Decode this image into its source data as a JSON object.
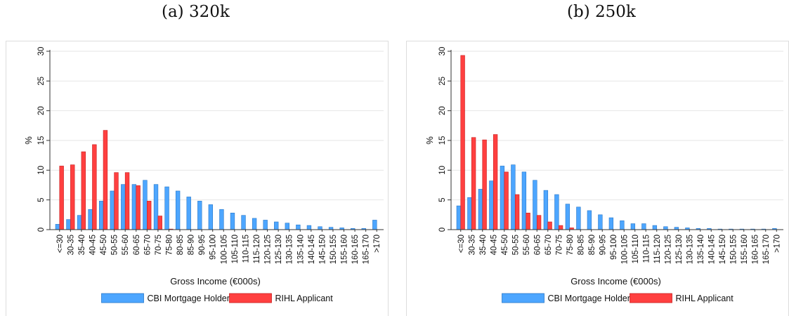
{
  "figure": {
    "panels": [
      {
        "title": "(a) 320k"
      },
      {
        "title": "(b) 250k"
      }
    ]
  },
  "colors": {
    "cbi": "#4da6ff",
    "cbi_edge": "#2a78c8",
    "rihl": "#ff4040",
    "rihl_edge": "#c81e1e",
    "grid": "#e6e6e6",
    "frame": "#dddddd",
    "axis": "#333333"
  },
  "chart_data": [
    {
      "type": "bar",
      "title": "(a) 320k",
      "xlabel": "Gross Income (€000s)",
      "ylabel": "%",
      "ylim": [
        0,
        30
      ],
      "yticks": [
        0,
        5,
        10,
        15,
        20,
        25,
        30
      ],
      "grid": true,
      "legend_position": "bottom",
      "categories": [
        "<=30",
        "30-35",
        "35-40",
        "40-45",
        "45-50",
        "50-55",
        "55-60",
        "60-65",
        "65-70",
        "70-75",
        "75-80",
        "80-85",
        "85-90",
        "90-95",
        "95-100",
        "100-105",
        "105-110",
        "110-115",
        "115-120",
        "120-125",
        "125-130",
        "130-135",
        "135-140",
        "140-145",
        "145-150",
        "150-155",
        "155-160",
        "160-165",
        "165-170",
        ">170"
      ],
      "series": [
        {
          "name": "CBI Mortgage Holder",
          "values": [
            0.9,
            1.7,
            2.4,
            3.4,
            4.8,
            6.5,
            7.6,
            7.6,
            8.3,
            7.6,
            7.2,
            6.5,
            5.5,
            4.8,
            4.2,
            3.4,
            2.8,
            2.4,
            1.9,
            1.6,
            1.3,
            1.1,
            0.8,
            0.7,
            0.5,
            0.4,
            0.3,
            0.2,
            0.2,
            1.6
          ]
        },
        {
          "name": "RIHL Applicant",
          "values": [
            10.7,
            10.9,
            13.1,
            14.3,
            16.7,
            9.6,
            9.6,
            7.4,
            4.8,
            2.3,
            0.1,
            0,
            0,
            0,
            0,
            0,
            0,
            0,
            0,
            0,
            0,
            0,
            0,
            0,
            0,
            0,
            0,
            0,
            0,
            0
          ]
        }
      ]
    },
    {
      "type": "bar",
      "title": "(b) 250k",
      "xlabel": "Gross Income (€000s)",
      "ylabel": "%",
      "ylim": [
        0,
        30
      ],
      "yticks": [
        0,
        5,
        10,
        15,
        20,
        25,
        30
      ],
      "grid": true,
      "legend_position": "bottom",
      "categories": [
        "<=30",
        "30-35",
        "35-40",
        "40-45",
        "45-50",
        "50-55",
        "55-60",
        "60-65",
        "65-70",
        "70-75",
        "75-80",
        "80-85",
        "85-90",
        "90-95",
        "95-100",
        "100-105",
        "105-110",
        "110-115",
        "115-120",
        "120-125",
        "125-130",
        "130-135",
        "135-140",
        "140-145",
        "145-150",
        "150-155",
        "155-160",
        "160-165",
        "165-170",
        ">170"
      ],
      "series": [
        {
          "name": "CBI Mortgage Holder",
          "values": [
            4.0,
            5.4,
            6.8,
            8.2,
            10.7,
            10.9,
            9.7,
            8.3,
            6.6,
            5.9,
            4.3,
            3.8,
            3.2,
            2.5,
            2.0,
            1.5,
            1.0,
            1.0,
            0.7,
            0.5,
            0.4,
            0.3,
            0.2,
            0.2,
            0.1,
            0.1,
            0.1,
            0.1,
            0.1,
            0.2
          ]
        },
        {
          "name": "RIHL Applicant",
          "values": [
            29.3,
            15.5,
            15.1,
            16.0,
            9.7,
            5.9,
            2.8,
            2.4,
            1.3,
            0.7,
            0.3,
            0,
            0,
            0,
            0,
            0,
            0,
            0,
            0,
            0,
            0,
            0,
            0,
            0,
            0,
            0,
            0,
            0,
            0,
            0
          ]
        }
      ]
    }
  ]
}
